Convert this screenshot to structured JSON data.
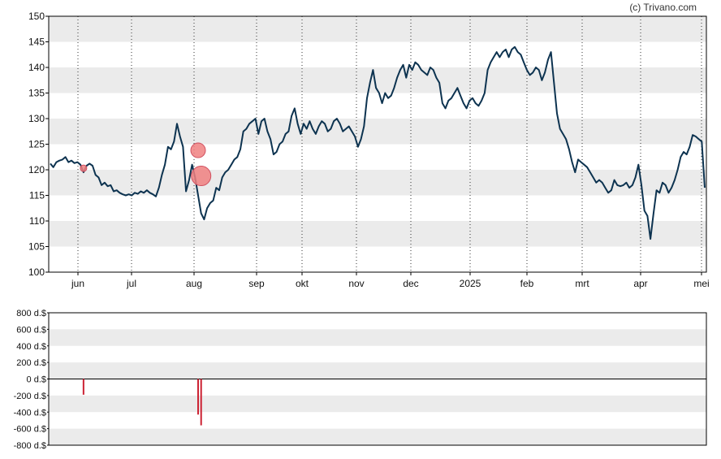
{
  "watermark": "(c) Trivano.com",
  "chart_data": [
    {
      "type": "line",
      "name": "price-chart",
      "ylim": [
        100,
        150
      ],
      "yticks": [
        "150",
        "145",
        "140",
        "135",
        "130",
        "125",
        "120",
        "115",
        "110",
        "105",
        "100"
      ],
      "xticks": [
        "jun",
        "jul",
        "aug",
        "sep",
        "okt",
        "nov",
        "dec",
        "2025",
        "feb",
        "mrt",
        "apr",
        "mei"
      ],
      "grid": true,
      "line_color": "#0d3350",
      "values": [
        121.2,
        120.5,
        121.5,
        121.8,
        122.0,
        122.5,
        121.5,
        121.8,
        121.3,
        121.5,
        121.0,
        119.5,
        120.8,
        121.2,
        120.8,
        119.0,
        118.5,
        117.0,
        117.5,
        116.8,
        117.0,
        115.8,
        116.0,
        115.5,
        115.2,
        115.0,
        115.2,
        115.0,
        115.5,
        115.3,
        115.8,
        115.5,
        116.0,
        115.5,
        115.2,
        114.8,
        116.5,
        119.0,
        121.0,
        124.5,
        124.0,
        125.5,
        129.0,
        126.5,
        124.5,
        115.8,
        118.0,
        121.0,
        118.5,
        115.0,
        111.5,
        110.3,
        112.5,
        113.5,
        114.0,
        116.5,
        116.0,
        118.5,
        119.5,
        120.0,
        121.0,
        122.0,
        122.5,
        124.0,
        127.5,
        128.0,
        129.0,
        129.5,
        130.0,
        127.0,
        129.5,
        130.0,
        127.5,
        126.0,
        123.0,
        123.5,
        125.0,
        125.5,
        127.0,
        127.5,
        130.5,
        132.0,
        129.0,
        127.0,
        129.0,
        128.0,
        129.5,
        128.0,
        127.0,
        128.5,
        129.5,
        129.0,
        127.5,
        128.0,
        129.5,
        130.0,
        129.0,
        127.5,
        128.0,
        128.5,
        127.5,
        126.5,
        124.5,
        126.0,
        128.5,
        134.0,
        137.0,
        139.5,
        136.0,
        135.0,
        133.0,
        135.0,
        134.0,
        134.5,
        136.0,
        138.0,
        139.5,
        140.5,
        138.0,
        140.5,
        139.5,
        141.0,
        140.5,
        139.5,
        139.0,
        138.5,
        140.0,
        139.5,
        138.0,
        137.0,
        133.0,
        132.0,
        133.5,
        134.0,
        135.0,
        136.0,
        134.5,
        133.0,
        132.0,
        133.5,
        134.0,
        133.0,
        132.5,
        133.5,
        135.0,
        139.5,
        141.0,
        142.0,
        143.0,
        142.0,
        143.0,
        143.5,
        142.0,
        143.5,
        144.0,
        143.0,
        142.5,
        141.0,
        139.5,
        138.5,
        139.0,
        140.0,
        139.5,
        137.5,
        139.0,
        141.5,
        143.0,
        137.0,
        131.0,
        128.0,
        127.0,
        126.0,
        124.0,
        121.5,
        119.5,
        122.0,
        121.5,
        121.0,
        120.5,
        119.5,
        118.5,
        117.5,
        118.0,
        117.5,
        116.5,
        115.5,
        116.0,
        118.0,
        117.0,
        116.8,
        117.0,
        117.5,
        116.5,
        117.0,
        118.5,
        121.0,
        117.0,
        112.0,
        111.0,
        106.5,
        111.5,
        116.0,
        115.5,
        117.5,
        117.0,
        115.5,
        116.5,
        118.0,
        120.0,
        122.5,
        123.5,
        123.0,
        124.5,
        126.8,
        126.5,
        126.0,
        125.5,
        116.5
      ],
      "trade_markers": [
        {
          "x_index": 11,
          "y": 120.3,
          "size": "small"
        },
        {
          "x_index": 49,
          "y": 123.8,
          "size": "medium"
        },
        {
          "x_index": 50,
          "y": 118.8,
          "size": "large"
        }
      ],
      "marker_color": "#f08080"
    },
    {
      "type": "bar",
      "name": "insider-trades-chart",
      "ylim": [
        -800,
        800
      ],
      "yticks": [
        "800 d.$",
        "600 d.$",
        "400 d.$",
        "200 d.$",
        "0 d.$",
        "-200 d.$",
        "-400 d.$",
        "-600 d.$",
        "-800 d.$"
      ],
      "bar_color": "#cc2233",
      "bars": [
        {
          "x_index": 11,
          "value": -190
        },
        {
          "x_index": 49,
          "value": -430
        },
        {
          "x_index": 50,
          "value": -560
        }
      ]
    }
  ]
}
